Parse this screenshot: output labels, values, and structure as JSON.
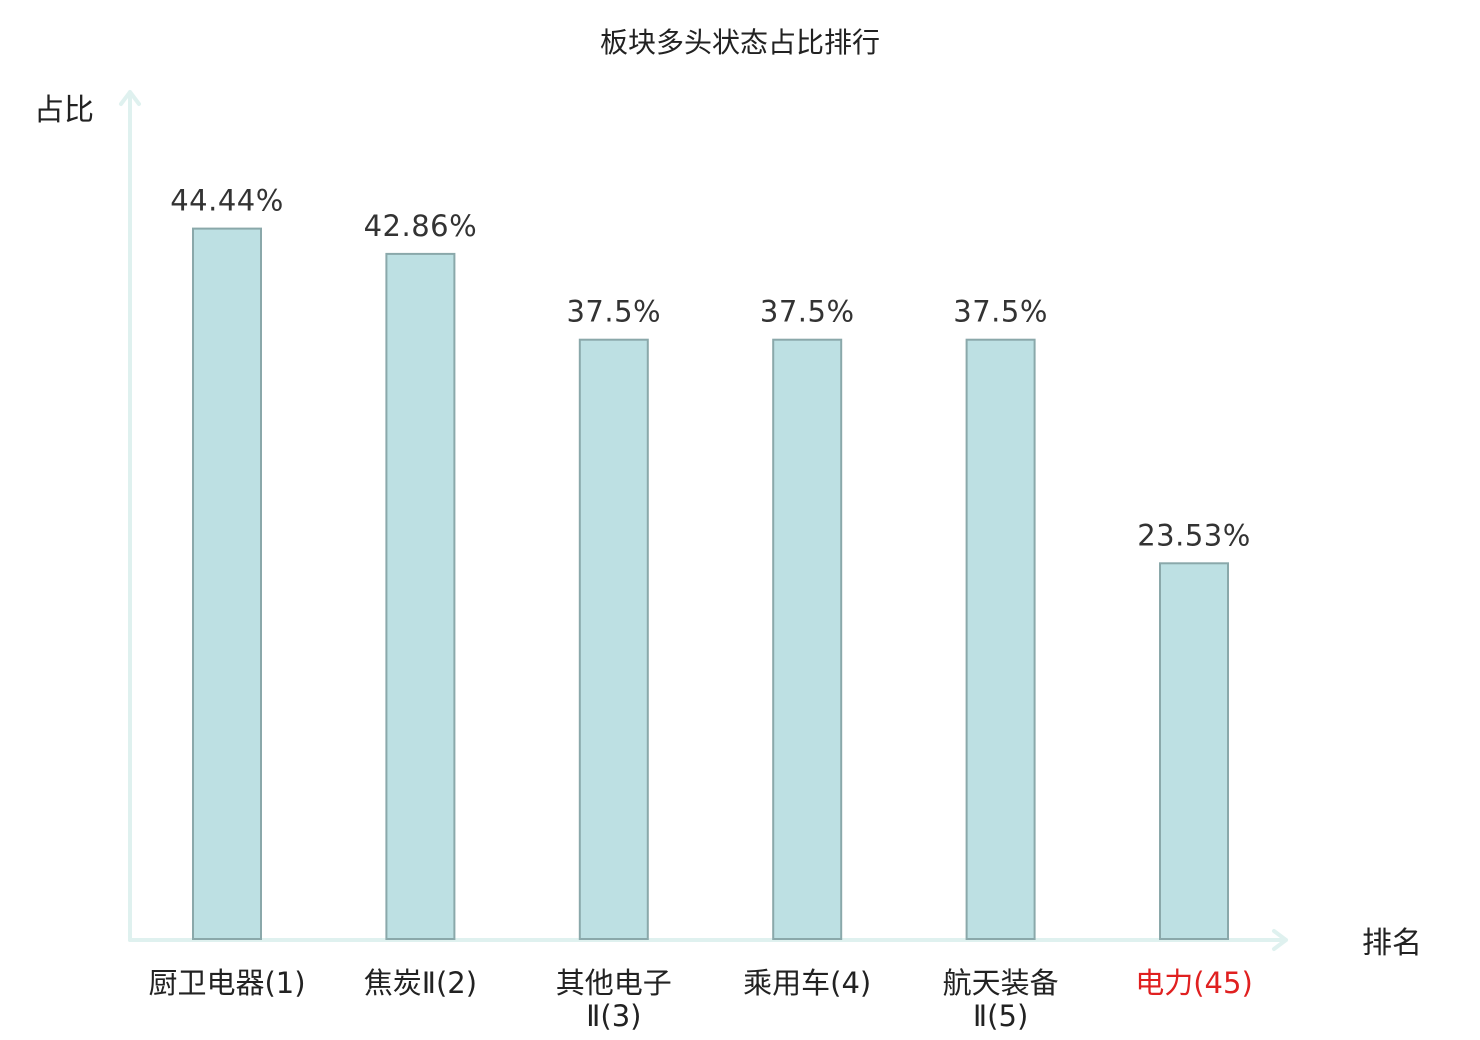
{
  "chart_data": {
    "type": "bar",
    "title": "板块多头状态占比排行",
    "ylabel": "占比",
    "xlabel": "排名",
    "categories": [
      {
        "lines": [
          "厨卫电器(1)"
        ],
        "highlight": false
      },
      {
        "lines": [
          "焦炭Ⅱ(2)"
        ],
        "highlight": false
      },
      {
        "lines": [
          "其他电子",
          "Ⅱ(3)"
        ],
        "highlight": false
      },
      {
        "lines": [
          "乘用车(4)"
        ],
        "highlight": false
      },
      {
        "lines": [
          "航天装备",
          "Ⅱ(5)"
        ],
        "highlight": false
      },
      {
        "lines": [
          "电力(45)"
        ],
        "highlight": true
      }
    ],
    "values": [
      44.44,
      42.86,
      37.5,
      37.5,
      37.5,
      23.53
    ],
    "value_labels": [
      "44.44%",
      "42.86%",
      "37.5%",
      "37.5%",
      "37.5%",
      "23.53%"
    ],
    "ylim": [
      0,
      53.1
    ],
    "grid": false,
    "colors": {
      "bar_fill": "#bde0e3",
      "bar_stroke": "#8aa8aa",
      "axis": "#dff1ef",
      "highlight_text": "#e02020"
    }
  }
}
